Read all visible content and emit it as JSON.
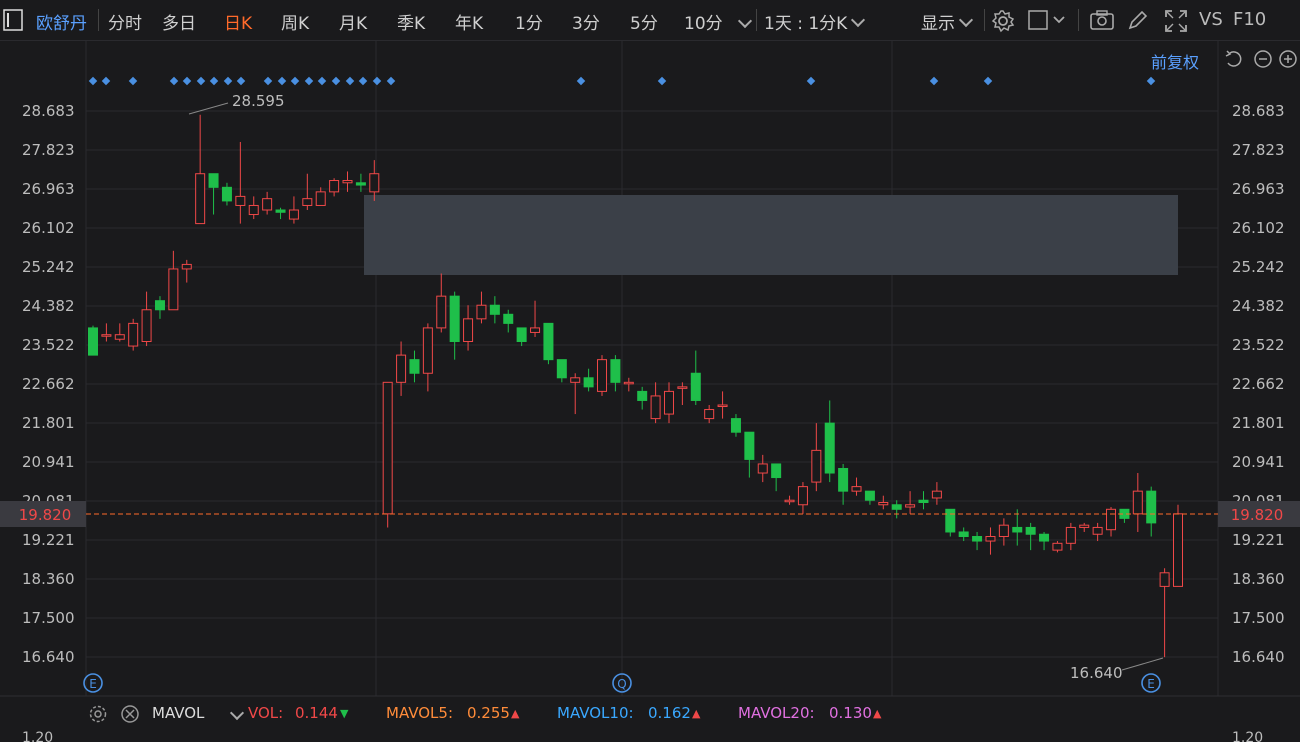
{
  "toolbar": {
    "stock_name": "欧舒丹",
    "tabs": [
      "分时",
      "多日",
      "日K",
      "周K",
      "月K",
      "季K",
      "年K",
      "1分",
      "3分",
      "5分",
      "10分"
    ],
    "active_tab": "日K",
    "interval_select": "1天 : 1分K",
    "display_label": "显示",
    "vs_label": "VS",
    "f10_label": "F10"
  },
  "chart": {
    "adjust_label": "前复权",
    "current_price": "19.820",
    "high_label": "28.595",
    "low_label": "16.640",
    "y_ticks": [
      "28.683",
      "27.823",
      "26.963",
      "26.102",
      "25.242",
      "24.382",
      "23.522",
      "22.662",
      "21.801",
      "20.941",
      "20.081",
      "19.221",
      "18.360",
      "17.500",
      "16.640"
    ],
    "up_color": "#f04848",
    "down_color": "#1fbf4a",
    "price_line_color": "#ff6a2a",
    "candles": [
      [
        23.9,
        23.3,
        23.95,
        23.3
      ],
      [
        23.75,
        23.75,
        24.0,
        23.6
      ],
      [
        23.65,
        23.75,
        24.0,
        23.6
      ],
      [
        23.5,
        24.0,
        24.1,
        23.4
      ],
      [
        23.6,
        24.3,
        24.7,
        23.5
      ],
      [
        24.5,
        24.3,
        24.6,
        24.1
      ],
      [
        24.3,
        25.2,
        25.6,
        24.3
      ],
      [
        25.2,
        25.3,
        25.4,
        24.9
      ],
      [
        26.2,
        27.3,
        28.6,
        26.2
      ],
      [
        27.3,
        27.0,
        27.3,
        26.4
      ],
      [
        27.0,
        26.7,
        27.1,
        26.6
      ],
      [
        26.6,
        26.8,
        28.0,
        26.2
      ],
      [
        26.4,
        26.6,
        26.8,
        26.3
      ],
      [
        26.5,
        26.75,
        26.9,
        26.4
      ],
      [
        26.5,
        26.45,
        26.55,
        26.3
      ],
      [
        26.3,
        26.5,
        26.8,
        26.2
      ],
      [
        26.6,
        26.75,
        27.3,
        26.5
      ],
      [
        26.6,
        26.9,
        27.0,
        26.6
      ],
      [
        26.9,
        27.15,
        27.2,
        26.8
      ],
      [
        27.1,
        27.15,
        27.35,
        26.9
      ],
      [
        27.1,
        27.05,
        27.3,
        26.9
      ],
      [
        26.9,
        27.3,
        27.6,
        26.7
      ],
      [
        19.8,
        22.7,
        22.7,
        19.5
      ],
      [
        22.7,
        23.3,
        23.6,
        22.4
      ],
      [
        23.2,
        22.9,
        23.4,
        22.7
      ],
      [
        22.9,
        23.9,
        24.0,
        22.5
      ],
      [
        23.9,
        24.6,
        25.1,
        23.8
      ],
      [
        24.6,
        23.6,
        24.7,
        23.2
      ],
      [
        23.6,
        24.1,
        24.4,
        23.4
      ],
      [
        24.1,
        24.4,
        24.7,
        24.0
      ],
      [
        24.4,
        24.2,
        24.6,
        24.0
      ],
      [
        24.2,
        24.0,
        24.3,
        23.8
      ],
      [
        23.9,
        23.6,
        23.9,
        23.5
      ],
      [
        23.8,
        23.9,
        24.5,
        23.7
      ],
      [
        24.0,
        23.2,
        24.0,
        23.1
      ],
      [
        23.2,
        22.8,
        23.2,
        22.7
      ],
      [
        22.7,
        22.8,
        22.9,
        22.0
      ],
      [
        22.8,
        22.6,
        23.0,
        22.5
      ],
      [
        22.5,
        23.2,
        23.3,
        22.4
      ],
      [
        23.2,
        22.7,
        23.3,
        22.5
      ],
      [
        22.7,
        22.7,
        22.8,
        22.5
      ],
      [
        22.5,
        22.3,
        22.6,
        22.1
      ],
      [
        21.9,
        22.4,
        22.7,
        21.8
      ],
      [
        22.0,
        22.5,
        22.7,
        21.8
      ],
      [
        22.6,
        22.6,
        22.7,
        22.2
      ],
      [
        22.9,
        22.3,
        23.4,
        22.2
      ],
      [
        21.9,
        22.1,
        22.2,
        21.8
      ],
      [
        22.2,
        22.2,
        22.5,
        21.9
      ],
      [
        21.9,
        21.6,
        22.0,
        21.5
      ],
      [
        21.6,
        21.0,
        21.6,
        20.6
      ],
      [
        20.7,
        20.9,
        21.1,
        20.5
      ],
      [
        20.9,
        20.6,
        20.9,
        20.3
      ],
      [
        20.1,
        20.1,
        20.2,
        20.0
      ],
      [
        20.0,
        20.4,
        20.5,
        19.8
      ],
      [
        20.5,
        21.2,
        21.8,
        20.3
      ],
      [
        21.8,
        20.7,
        22.3,
        20.5
      ],
      [
        20.8,
        20.3,
        20.9,
        20.0
      ],
      [
        20.3,
        20.4,
        20.6,
        20.2
      ],
      [
        20.3,
        20.1,
        20.3,
        20.0
      ],
      [
        20.0,
        20.05,
        20.2,
        19.9
      ],
      [
        20.0,
        19.9,
        20.1,
        19.7
      ],
      [
        19.95,
        20.0,
        20.3,
        19.8
      ],
      [
        20.1,
        20.05,
        20.3,
        19.9
      ],
      [
        20.15,
        20.3,
        20.5,
        20.0
      ],
      [
        19.9,
        19.4,
        19.9,
        19.3
      ],
      [
        19.4,
        19.3,
        19.5,
        19.2
      ],
      [
        19.3,
        19.2,
        19.4,
        19.0
      ],
      [
        19.2,
        19.3,
        19.5,
        18.9
      ],
      [
        19.3,
        19.55,
        19.7,
        19.1
      ],
      [
        19.5,
        19.4,
        19.9,
        19.1
      ],
      [
        19.5,
        19.35,
        19.6,
        19.0
      ],
      [
        19.35,
        19.2,
        19.4,
        19.0
      ],
      [
        19.0,
        19.15,
        19.2,
        18.95
      ],
      [
        19.15,
        19.5,
        19.6,
        19.0
      ],
      [
        19.5,
        19.55,
        19.6,
        19.4
      ],
      [
        19.35,
        19.5,
        19.6,
        19.2
      ],
      [
        19.45,
        19.9,
        19.95,
        19.3
      ],
      [
        19.9,
        19.7,
        19.9,
        19.6
      ],
      [
        19.8,
        20.3,
        20.7,
        19.4
      ],
      [
        20.3,
        19.6,
        20.4,
        19.3
      ],
      [
        18.2,
        18.5,
        18.6,
        16.64
      ],
      [
        18.2,
        19.8,
        20.0,
        18.2
      ]
    ],
    "markers": [
      93,
      106,
      133,
      174,
      187,
      201,
      214,
      228,
      241,
      268,
      282,
      295,
      309,
      322,
      336,
      350,
      363,
      377,
      391,
      581,
      662,
      811,
      934,
      988,
      1151
    ]
  },
  "volume": {
    "indicator": "MAVOL",
    "vol_label": "VOL:",
    "vol_value": "0.144",
    "mavol5_label": "MAVOL5:",
    "mavol5_value": "0.255",
    "mavol10_label": "MAVOL10:",
    "mavol10_value": "0.162",
    "mavol20_label": "MAVOL20:",
    "mavol20_value": "0.130",
    "vol_color": "#f04848",
    "mavol5_color": "#ff8c3a",
    "mavol10_color": "#3aa8ff",
    "mavol20_color": "#e070e0",
    "bottom_tick": "1.20"
  }
}
